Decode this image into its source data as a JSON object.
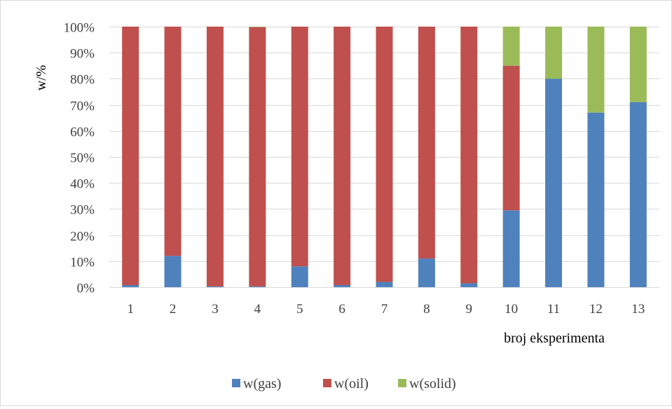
{
  "chart_data": {
    "type": "bar",
    "stacked": "percent",
    "categories": [
      "1",
      "2",
      "3",
      "4",
      "5",
      "6",
      "7",
      "8",
      "9",
      "10",
      "11",
      "12",
      "13"
    ],
    "series": [
      {
        "name": "w(gas)",
        "color": "#4f81bd",
        "values": [
          0.8,
          12,
          0.3,
          0.3,
          8,
          0.8,
          2,
          11,
          1.5,
          29.5,
          80,
          67,
          71
        ]
      },
      {
        "name": "w(oil)",
        "color": "#c0504d",
        "values": [
          99.2,
          88,
          99.7,
          99.5,
          92,
          99.2,
          98,
          89,
          98.5,
          55.5,
          0,
          0,
          0
        ]
      },
      {
        "name": "w(solid)",
        "color": "#9bbb59",
        "values": [
          0,
          0,
          0,
          0.2,
          0,
          0,
          0,
          0,
          0,
          15,
          20,
          33,
          29
        ]
      }
    ],
    "yticks": [
      "0%",
      "10%",
      "20%",
      "30%",
      "40%",
      "50%",
      "60%",
      "70%",
      "80%",
      "90%",
      "100%"
    ],
    "ylim": [
      0,
      100
    ],
    "ylabel": "w/%",
    "xlabel": "broj eksperimenta",
    "grid": true,
    "legend_position": "bottom"
  }
}
